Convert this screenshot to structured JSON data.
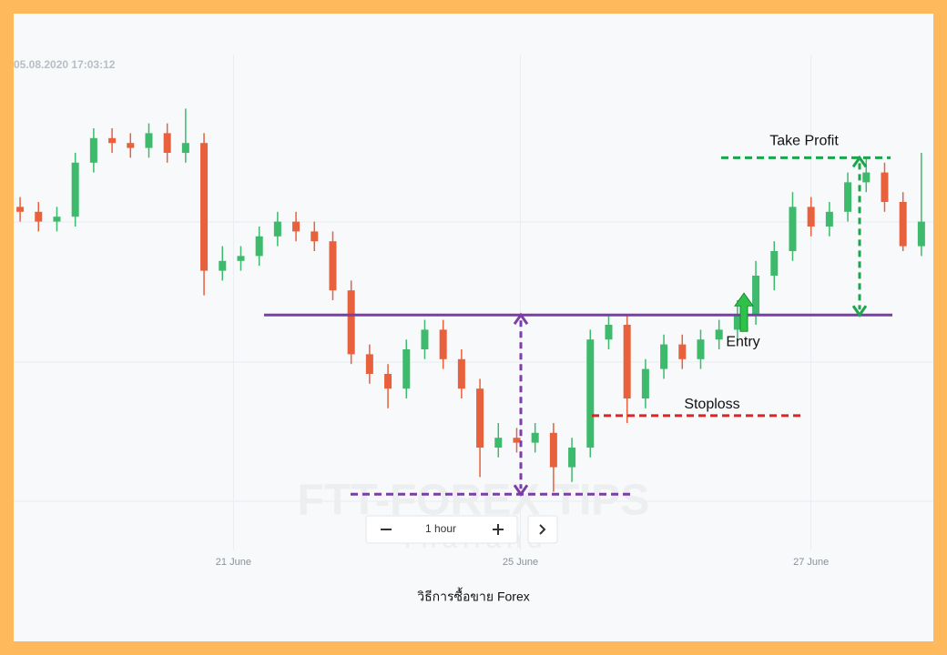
{
  "timestamp": "05.08.2020 17:03:12",
  "timeframe": "1 hour",
  "caption": "วิธีการซื้อขาย Forex",
  "watermark": {
    "title": "FTT-FOREX TIPS",
    "subtitle": "Thailand"
  },
  "chart_data": {
    "type": "candlestick",
    "up_color": "#3dba6c",
    "down_color": "#e8603c",
    "open": [
      69,
      68,
      66,
      67,
      78,
      83,
      82,
      81,
      84,
      80,
      82,
      56,
      58,
      59,
      63,
      66,
      64,
      62,
      52,
      39,
      35,
      32,
      40,
      44,
      38,
      32,
      20,
      22,
      21,
      23,
      16,
      20,
      42,
      45,
      30,
      36,
      41,
      38,
      42,
      44,
      47,
      55,
      60,
      69,
      65,
      68,
      74,
      76,
      70,
      61
    ],
    "high": [
      71,
      70,
      69,
      80,
      85,
      85,
      84,
      86,
      86,
      89,
      84,
      61,
      61,
      65,
      68,
      68,
      66,
      64,
      54,
      41,
      37,
      42,
      46,
      46,
      40,
      34,
      25,
      24,
      25,
      25,
      22,
      44,
      47,
      47,
      38,
      43,
      43,
      44,
      46,
      50,
      58,
      62,
      72,
      71,
      70,
      76,
      79,
      78,
      72,
      80
    ],
    "low": [
      66,
      64,
      64,
      65,
      76,
      80,
      79,
      79,
      78,
      78,
      51,
      54,
      56,
      57,
      61,
      62,
      60,
      50,
      37,
      33,
      28,
      30,
      38,
      36,
      30,
      14,
      18,
      19,
      19,
      11,
      13,
      18,
      40,
      25,
      28,
      34,
      36,
      36,
      40,
      42,
      45,
      52,
      58,
      63,
      63,
      66,
      72,
      68,
      60,
      59
    ],
    "close": [
      68,
      66,
      67,
      78,
      83,
      82,
      81,
      84,
      80,
      82,
      56,
      58,
      59,
      63,
      66,
      64,
      62,
      52,
      39,
      35,
      32,
      40,
      44,
      38,
      32,
      20,
      22,
      21,
      23,
      16,
      20,
      42,
      45,
      30,
      36,
      41,
      38,
      42,
      44,
      47,
      55,
      60,
      69,
      65,
      68,
      74,
      76,
      70,
      61,
      66
    ],
    "ylim": [
      0,
      100
    ],
    "xlim": [
      -0.35,
      49.65
    ],
    "xticks": [
      {
        "value": 11.6,
        "label": "21 June"
      },
      {
        "value": 27.2,
        "label": "25 June"
      },
      {
        "value": 43,
        "label": "27 June"
      }
    ],
    "grid": true,
    "annotations": {
      "neckline": {
        "y": 47,
        "color": "#7a3ea6"
      },
      "bottom": {
        "y": 10.5,
        "color": "#7a3ea6"
      },
      "take_profit": {
        "label": "Take Profit",
        "y": 79,
        "color": "#1aa64a"
      },
      "stoploss": {
        "label": "Stoploss",
        "y": 26.5,
        "color": "#e02424"
      },
      "entry": {
        "label": "Entry",
        "color": "#2ec24a"
      }
    }
  }
}
